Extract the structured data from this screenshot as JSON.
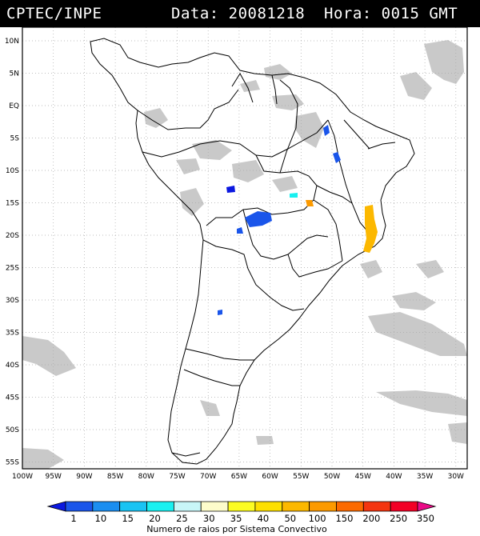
{
  "header": {
    "source": "CPTEC/INPE",
    "datetime": "Data: 20081218  Hora: 0015 GMT"
  },
  "map": {
    "lat_labels": [
      "10N",
      "5N",
      "EQ",
      "5S",
      "10S",
      "15S",
      "20S",
      "25S",
      "30S",
      "35S",
      "40S",
      "45S",
      "50S",
      "55S"
    ],
    "lon_labels": [
      "100W",
      "95W",
      "90W",
      "85W",
      "80W",
      "75W",
      "70W",
      "65W",
      "60W",
      "55W",
      "50W",
      "45W",
      "40W",
      "35W",
      "30W"
    ]
  },
  "colorbar": {
    "levels": [
      "1",
      "10",
      "15",
      "20",
      "25",
      "30",
      "35",
      "40",
      "50",
      "100",
      "150",
      "200",
      "250",
      "350"
    ],
    "colors": [
      "#0b18e0",
      "#1a55ea",
      "#1b8ef0",
      "#19c3f3",
      "#19f0f0",
      "#c8f6f8",
      "#fdfccb",
      "#fcfc22",
      "#fde000",
      "#fcb800",
      "#fc9a00",
      "#fc6a00",
      "#f43510",
      "#f20025",
      "#ea0b87"
    ],
    "title": "Numero de raios por Sistema Convectivo"
  },
  "colors": {
    "land": "#ffffff",
    "cloud": "#c8c8c8",
    "border": "#000000",
    "grid": "#b0b0b0"
  }
}
